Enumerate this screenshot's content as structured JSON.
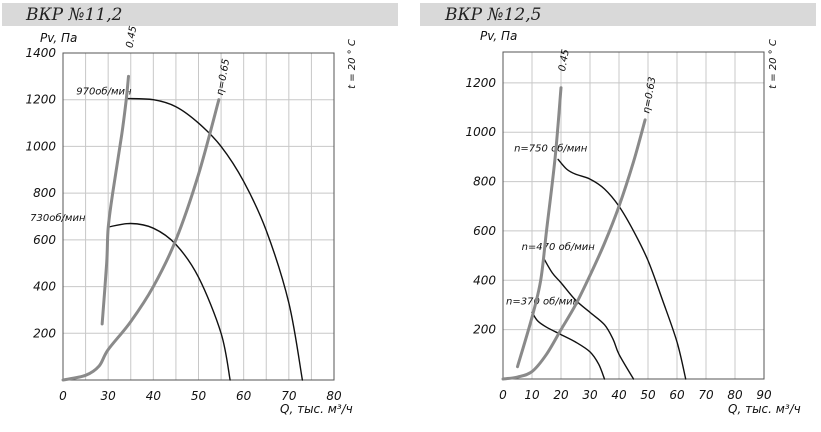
{
  "chart_data": [
    {
      "type": "line",
      "title": "ВКР №11,2",
      "ylabel": "Pv, Па",
      "xlabel": "Q, тыс. м³/ч",
      "temp_label": "t = 20 ° C",
      "xticks": [
        "0",
        "30",
        "40",
        "50",
        "60",
        "70",
        "80"
      ],
      "yticks": [
        "200",
        "400",
        "600",
        "800",
        "1000",
        "1200",
        "1400"
      ],
      "ylim": [
        0,
        1400
      ],
      "grid": true,
      "series": [
        {
          "name": "970об/мин",
          "kind": "speed",
          "points": [
            [
              34,
              1205
            ],
            [
              40,
              1200
            ],
            [
              45,
              1170
            ],
            [
              50,
              1100
            ],
            [
              55,
              1000
            ],
            [
              60,
              850
            ],
            [
              65,
              640
            ],
            [
              70,
              330
            ],
            [
              73,
              0
            ]
          ]
        },
        {
          "name": "730об/мин",
          "kind": "speed",
          "points": [
            [
              30,
              655
            ],
            [
              35,
              670
            ],
            [
              40,
              650
            ],
            [
              45,
              580
            ],
            [
              50,
              440
            ],
            [
              55,
              200
            ],
            [
              57,
              0
            ]
          ]
        },
        {
          "name": "0.45",
          "kind": "efficiency",
          "points": [
            [
              26,
              240
            ],
            [
              29,
              500
            ],
            [
              30,
              650
            ],
            [
              31,
              800
            ],
            [
              33,
              1050
            ],
            [
              34,
              1200
            ],
            [
              34.5,
              1300
            ]
          ]
        },
        {
          "name": "η=0.65",
          "kind": "efficiency",
          "points": [
            [
              0,
              0
            ],
            [
              15,
              20
            ],
            [
              24,
              60
            ],
            [
              30,
              130
            ],
            [
              35,
              250
            ],
            [
              40,
              400
            ],
            [
              45,
              600
            ],
            [
              50,
              880
            ],
            [
              54.5,
              1200
            ]
          ]
        }
      ]
    },
    {
      "type": "line",
      "title": "ВКР №12,5",
      "ylabel": "Pv, Па",
      "xlabel": "Q, тыс. м³/ч",
      "temp_label": "t = 20 ° C",
      "xticks": [
        "0",
        "10",
        "20",
        "30",
        "40",
        "50",
        "60",
        "70",
        "80",
        "90"
      ],
      "yticks": [
        "200",
        "400",
        "600",
        "800",
        "1000",
        "1200"
      ],
      "xlim": [
        0,
        90
      ],
      "ylim": [
        0,
        1325
      ],
      "grid": true,
      "series": [
        {
          "name": "n=750 об/мин",
          "kind": "speed",
          "points": [
            [
              19,
              890
            ],
            [
              22,
              850
            ],
            [
              25,
              830
            ],
            [
              30,
              810
            ],
            [
              35,
              770
            ],
            [
              40,
              700
            ],
            [
              45,
              600
            ],
            [
              50,
              480
            ],
            [
              55,
              320
            ],
            [
              60,
              150
            ],
            [
              63,
              0
            ]
          ]
        },
        {
          "name": "n=470 об/мин",
          "kind": "speed",
          "points": [
            [
              14,
              490
            ],
            [
              17,
              430
            ],
            [
              20,
              390
            ],
            [
              25,
              320
            ],
            [
              30,
              270
            ],
            [
              35,
              220
            ],
            [
              38,
              160
            ],
            [
              40,
              100
            ],
            [
              45,
              0
            ]
          ]
        },
        {
          "name": "n=370 об/мин",
          "kind": "speed",
          "points": [
            [
              10,
              270
            ],
            [
              12,
              235
            ],
            [
              15,
              210
            ],
            [
              20,
              180
            ],
            [
              25,
              150
            ],
            [
              30,
              110
            ],
            [
              33,
              60
            ],
            [
              35,
              0
            ]
          ]
        },
        {
          "name": "0.45",
          "kind": "efficiency",
          "points": [
            [
              5,
              50
            ],
            [
              10,
              250
            ],
            [
              13,
              400
            ],
            [
              15,
              600
            ],
            [
              18,
              900
            ],
            [
              20,
              1180
            ]
          ]
        },
        {
          "name": "η=0.63",
          "kind": "efficiency",
          "points": [
            [
              0,
              0
            ],
            [
              5,
              8
            ],
            [
              10,
              30
            ],
            [
              15,
              100
            ],
            [
              20,
              200
            ],
            [
              25,
              300
            ],
            [
              30,
              420
            ],
            [
              35,
              550
            ],
            [
              40,
              700
            ],
            [
              45,
              880
            ],
            [
              49,
              1050
            ]
          ]
        }
      ]
    }
  ]
}
